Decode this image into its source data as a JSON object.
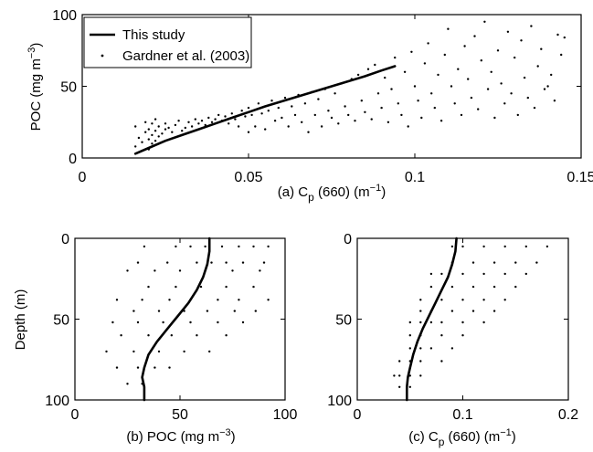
{
  "chart_data": [
    {
      "type": "scatter",
      "panel": "a",
      "xlabel_parts": [
        "(a) C",
        "p",
        " (660) (m",
        "−1",
        ")"
      ],
      "ylabel_parts": [
        "POC (mg m",
        "−3",
        ")"
      ],
      "xlim": [
        0,
        0.15
      ],
      "ylim": [
        0,
        100
      ],
      "xticks": [
        "0",
        "0.05",
        "0.1",
        "0.15"
      ],
      "yticks": [
        "0",
        "50",
        "100"
      ],
      "legend": {
        "position": "top-left",
        "entries": [
          "This study",
          "Gardner et al. (2003)"
        ]
      },
      "series": [
        {
          "name": "This study",
          "kind": "line",
          "x": [
            0.016,
            0.02,
            0.025,
            0.03,
            0.035,
            0.04,
            0.045,
            0.05,
            0.055,
            0.06,
            0.065,
            0.07,
            0.075,
            0.08,
            0.085,
            0.09,
            0.094
          ],
          "y": [
            3,
            7,
            12,
            16,
            20,
            24,
            28,
            32,
            36,
            39.5,
            43,
            46.5,
            50,
            53.5,
            57,
            61,
            64
          ]
        },
        {
          "name": "Gardner et al. (2003)",
          "kind": "scatter",
          "x": [
            0.016,
            0.016,
            0.017,
            0.018,
            0.019,
            0.019,
            0.02,
            0.02,
            0.02,
            0.021,
            0.021,
            0.021,
            0.022,
            0.022,
            0.022,
            0.023,
            0.023,
            0.024,
            0.025,
            0.025,
            0.026,
            0.027,
            0.028,
            0.029,
            0.03,
            0.031,
            0.032,
            0.033,
            0.034,
            0.035,
            0.036,
            0.037,
            0.038,
            0.039,
            0.04,
            0.041,
            0.042,
            0.043,
            0.044,
            0.045,
            0.046,
            0.047,
            0.048,
            0.049,
            0.05,
            0.05,
            0.051,
            0.052,
            0.053,
            0.054,
            0.055,
            0.056,
            0.057,
            0.058,
            0.059,
            0.06,
            0.061,
            0.062,
            0.063,
            0.064,
            0.065,
            0.066,
            0.067,
            0.068,
            0.069,
            0.07,
            0.071,
            0.072,
            0.073,
            0.074,
            0.075,
            0.076,
            0.077,
            0.078,
            0.079,
            0.08,
            0.081,
            0.082,
            0.083,
            0.084,
            0.085,
            0.086,
            0.087,
            0.088,
            0.089,
            0.09,
            0.091,
            0.092,
            0.093,
            0.094,
            0.095,
            0.096,
            0.097,
            0.098,
            0.099,
            0.1,
            0.101,
            0.102,
            0.103,
            0.104,
            0.105,
            0.106,
            0.107,
            0.108,
            0.109,
            0.11,
            0.111,
            0.112,
            0.113,
            0.114,
            0.115,
            0.116,
            0.117,
            0.118,
            0.119,
            0.12,
            0.121,
            0.122,
            0.123,
            0.124,
            0.125,
            0.126,
            0.127,
            0.128,
            0.129,
            0.13,
            0.131,
            0.132,
            0.133,
            0.134,
            0.135,
            0.136,
            0.137,
            0.138,
            0.139,
            0.14,
            0.141,
            0.142,
            0.143,
            0.144,
            0.145
          ],
          "y": [
            22,
            8,
            14,
            11,
            18,
            25,
            13,
            6,
            20,
            16,
            24,
            10,
            19,
            27,
            12,
            22,
            15,
            17,
            24,
            20,
            21,
            18,
            23,
            26,
            19,
            21,
            25,
            22,
            27,
            24,
            26,
            23,
            28,
            25,
            27,
            30,
            26,
            29,
            24,
            31,
            27,
            22,
            33,
            29,
            18,
            35,
            30,
            22,
            38,
            31,
            20,
            33,
            40,
            26,
            35,
            28,
            42,
            22,
            36,
            30,
            44,
            25,
            38,
            18,
            46,
            30,
            41,
            22,
            48,
            33,
            28,
            45,
            24,
            52,
            36,
            30,
            55,
            26,
            58,
            40,
            32,
            62,
            27,
            65,
            45,
            35,
            56,
            25,
            48,
            70,
            38,
            30,
            60,
            22,
            74,
            50,
            40,
            28,
            66,
            80,
            45,
            35,
            58,
            26,
            72,
            90,
            50,
            38,
            62,
            30,
            78,
            55,
            42,
            85,
            34,
            68,
            95,
            48,
            60,
            28,
            75,
            52,
            38,
            88,
            45,
            70,
            30,
            82,
            56,
            42,
            92,
            35,
            64,
            76,
            48,
            50,
            58,
            40,
            86,
            72,
            84
          ]
        }
      ]
    },
    {
      "type": "scatter",
      "panel": "b",
      "xlabel_parts": [
        "(b) POC (mg m",
        "−3",
        ")"
      ],
      "ylabel_parts": [
        "Depth (m)"
      ],
      "xlim": [
        0,
        100
      ],
      "ylim": [
        100,
        0
      ],
      "xticks": [
        "0",
        "50",
        "100"
      ],
      "yticks": [
        "0",
        "50",
        "100"
      ],
      "series": [
        {
          "name": "",
          "kind": "line",
          "x": [
            64,
            64,
            63,
            61,
            58,
            54,
            49,
            44,
            39,
            35,
            33,
            32,
            33,
            33
          ],
          "y": [
            0,
            8,
            16,
            24,
            32,
            40,
            48,
            56,
            64,
            72,
            80,
            86,
            92,
            100
          ]
        },
        {
          "name": "",
          "kind": "scatter",
          "x": [
            33,
            48,
            55,
            62,
            70,
            78,
            85,
            92,
            30,
            44,
            58,
            65,
            72,
            80,
            90,
            25,
            38,
            50,
            62,
            75,
            88,
            35,
            48,
            60,
            72,
            85,
            20,
            32,
            45,
            55,
            68,
            78,
            92,
            28,
            40,
            52,
            63,
            76,
            86,
            18,
            30,
            42,
            55,
            68,
            80,
            22,
            35,
            46,
            58,
            72,
            15,
            28,
            40,
            52,
            64,
            20,
            30,
            38,
            45,
            25,
            32
          ],
          "y": [
            5,
            5,
            5,
            5,
            5,
            5,
            5,
            5,
            15,
            15,
            15,
            15,
            15,
            15,
            15,
            20,
            20,
            20,
            20,
            20,
            20,
            30,
            30,
            30,
            30,
            30,
            38,
            38,
            38,
            38,
            38,
            38,
            38,
            45,
            45,
            45,
            45,
            45,
            45,
            52,
            52,
            52,
            52,
            52,
            52,
            60,
            60,
            60,
            60,
            60,
            70,
            70,
            70,
            70,
            70,
            80,
            80,
            80,
            80,
            90,
            90
          ]
        }
      ]
    },
    {
      "type": "scatter",
      "panel": "c",
      "xlabel_parts": [
        "(c) C",
        "p",
        " (660) (m",
        "−1",
        ")"
      ],
      "ylabel_parts": [],
      "xlim": [
        0,
        0.2
      ],
      "ylim": [
        100,
        0
      ],
      "xticks": [
        "0",
        "0.1",
        "0.2"
      ],
      "yticks": [
        "0",
        "50",
        "100"
      ],
      "series": [
        {
          "name": "",
          "kind": "line",
          "x": [
            0.094,
            0.093,
            0.09,
            0.086,
            0.08,
            0.074,
            0.068,
            0.062,
            0.057,
            0.053,
            0.05,
            0.048,
            0.047,
            0.047
          ],
          "y": [
            0,
            8,
            16,
            24,
            32,
            40,
            48,
            56,
            64,
            72,
            80,
            86,
            92,
            100
          ]
        },
        {
          "name": "",
          "kind": "scatter",
          "x": [
            0.09,
            0.1,
            0.12,
            0.14,
            0.16,
            0.18,
            0.09,
            0.11,
            0.13,
            0.15,
            0.17,
            0.07,
            0.08,
            0.1,
            0.12,
            0.14,
            0.16,
            0.07,
            0.09,
            0.11,
            0.13,
            0.15,
            0.06,
            0.08,
            0.1,
            0.12,
            0.14,
            0.06,
            0.07,
            0.09,
            0.11,
            0.13,
            0.05,
            0.06,
            0.07,
            0.08,
            0.1,
            0.12,
            0.05,
            0.06,
            0.08,
            0.1,
            0.05,
            0.06,
            0.07,
            0.09,
            0.04,
            0.05,
            0.06,
            0.08,
            0.035,
            0.04,
            0.05,
            0.06,
            0.04,
            0.05
          ],
          "y": [
            5,
            5,
            5,
            5,
            5,
            5,
            15,
            15,
            15,
            15,
            15,
            22,
            22,
            22,
            22,
            22,
            22,
            30,
            30,
            30,
            30,
            30,
            38,
            38,
            38,
            38,
            38,
            45,
            45,
            45,
            45,
            45,
            52,
            52,
            52,
            52,
            52,
            52,
            60,
            60,
            60,
            60,
            68,
            68,
            68,
            68,
            76,
            76,
            76,
            76,
            85,
            85,
            85,
            85,
            92,
            92
          ]
        }
      ]
    }
  ]
}
